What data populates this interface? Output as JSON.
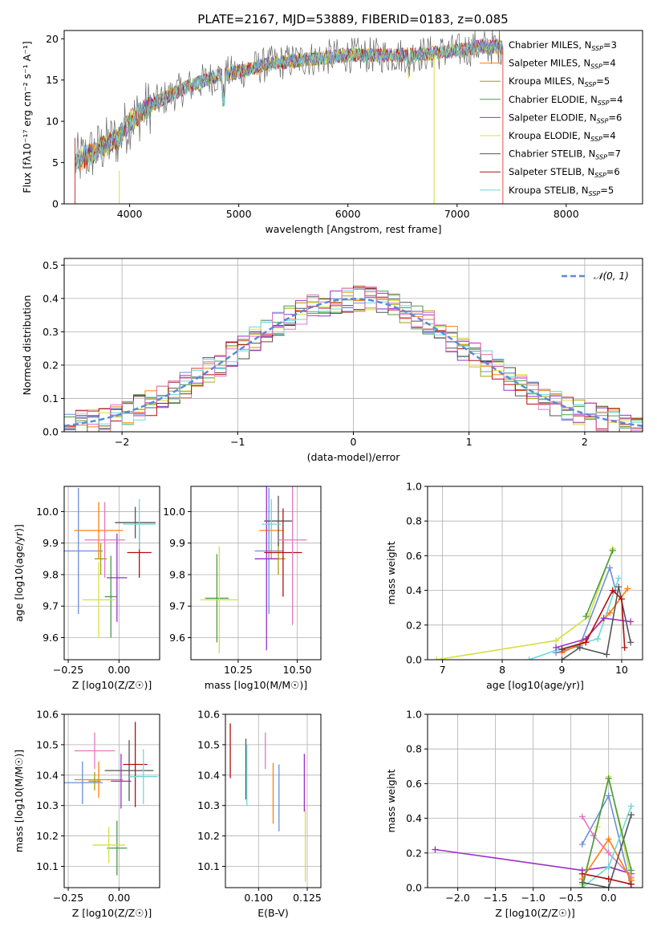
{
  "figure_title": "PLATE=2167, MJD=53889, FIBERID=0183, z=0.085",
  "colors": {
    "Chabrier MILES": "#6a8fd8",
    "Salpeter MILES": "#ff7f0e",
    "Kroupa MILES": "#a0a000",
    "Chabrier ELODIE": "#4a9a4a",
    "Salpeter ELODIE": "#9b30c8",
    "Kroupa ELODIE": "#d4e040",
    "Chabrier STELIB": "#555555",
    "Salpeter STELIB": "#b01010",
    "Kroupa STELIB": "#6ed8d8",
    "extra_pink": "#e377c2",
    "gaussian": "#5a8ad8"
  },
  "chart_data": [
    {
      "id": "spectrum",
      "type": "line",
      "title": "PLATE=2167, MJD=53889, FIBERID=0183, z=0.085",
      "xlabel": "wavelength [Angstrom, rest frame]",
      "ylabel": "Flux [fλ10⁻¹⁷ erg cm⁻² s⁻¹ A⁻¹]",
      "xlim": [
        3400,
        8700
      ],
      "ylim": [
        0,
        21
      ],
      "xticks": [
        4000,
        5000,
        6000,
        7000,
        8000
      ],
      "yticks": [
        0,
        5,
        10,
        15,
        20
      ],
      "legend_position": "top-right",
      "legend": [
        "Chabrier MILES, N_SSP=3",
        "Salpeter MILES, N_SSP=4",
        "Kroupa MILES, N_SSP=5",
        "Chabrier ELODIE, N_SSP=4",
        "Salpeter ELODIE, N_SSP=6",
        "Kroupa ELODIE, N_SSP=4",
        "Chabrier STELIB, N_SSP=7",
        "Salpeter STELIB, N_SSP=6",
        "Kroupa STELIB, N_SSP=5"
      ],
      "continuum": {
        "x": [
          3500,
          3700,
          3900,
          4000,
          4200,
          4500,
          4800,
          5000,
          5300,
          5600,
          6000,
          6500,
          7000,
          7200,
          7400
        ],
        "y": [
          5,
          6.5,
          8,
          10,
          12,
          14,
          15.5,
          16,
          17,
          17.5,
          18,
          18,
          18.5,
          19,
          19
        ]
      }
    },
    {
      "id": "residuals",
      "type": "bar",
      "xlabel": "(data-model)/error",
      "ylabel": "Normed distribution",
      "xlim": [
        -2.5,
        2.5
      ],
      "ylim": [
        0,
        0.52
      ],
      "xticks": [
        -2,
        -1,
        0,
        1,
        2
      ],
      "yticks": [
        0.0,
        0.1,
        0.2,
        0.3,
        0.4,
        0.5
      ],
      "legend_position": "top-right",
      "legend": [
        "𝒩(0, 1)"
      ],
      "bin_width": 0.1
    },
    {
      "id": "age_vs_Z",
      "type": "scatter",
      "xlabel": "Z [log10(Z/Z☉)]",
      "ylabel": "age  [log10(age/yr)]",
      "xlim": [
        -0.27,
        0.2
      ],
      "ylim": [
        9.53,
        10.08
      ],
      "xticks": [
        -0.25,
        0.0
      ],
      "yticks": [
        9.6,
        9.7,
        9.8,
        9.9,
        10.0
      ],
      "points": [
        {
          "c": "Chabrier MILES",
          "x": -0.2,
          "y": 9.875,
          "xerr": 0.12,
          "yerr": 0.2
        },
        {
          "c": "Salpeter MILES",
          "x": -0.1,
          "y": 9.94,
          "xerr": 0.12,
          "yerr": 0.09
        },
        {
          "c": "Kroupa MILES",
          "x": -0.09,
          "y": 9.85,
          "xerr": 0.03,
          "yerr": 0.05
        },
        {
          "c": "Chabrier ELODIE",
          "x": -0.04,
          "y": 9.73,
          "xerr": 0.03,
          "yerr": 0.13
        },
        {
          "c": "Salpeter ELODIE",
          "x": -0.01,
          "y": 9.79,
          "xerr": 0.05,
          "yerr": 0.14
        },
        {
          "c": "Kroupa ELODIE",
          "x": -0.1,
          "y": 9.72,
          "xerr": 0.08,
          "yerr": 0.12
        },
        {
          "c": "Chabrier STELIB",
          "x": 0.08,
          "y": 9.965,
          "xerr": 0.1,
          "yerr": 0.05
        },
        {
          "c": "Salpeter STELIB",
          "x": 0.1,
          "y": 9.87,
          "xerr": 0.06,
          "yerr": 0.08
        },
        {
          "c": "Kroupa STELIB",
          "x": 0.1,
          "y": 9.96,
          "xerr": 0.08,
          "yerr": 0.08
        },
        {
          "c": "extra_pink",
          "x": -0.07,
          "y": 9.91,
          "xerr": 0.1,
          "yerr": 0.12
        }
      ]
    },
    {
      "id": "age_vs_mass",
      "type": "scatter",
      "xlabel": "mass [log10(M/M☉)]",
      "ylabel": "",
      "xlim": [
        10.05,
        10.6
      ],
      "ylim": [
        9.53,
        10.08
      ],
      "xticks": [
        10.25,
        10.5
      ],
      "yticks": [
        9.6,
        9.7,
        9.8,
        9.9,
        10.0
      ],
      "points": [
        {
          "c": "Chabrier MILES",
          "x": 10.38,
          "y": 9.875,
          "xerr": 0.06,
          "yerr": 0.2
        },
        {
          "c": "Salpeter MILES",
          "x": 10.39,
          "y": 9.94,
          "xerr": 0.05,
          "yerr": 0.09
        },
        {
          "c": "Kroupa MILES",
          "x": 10.42,
          "y": 9.85,
          "xerr": 0.03,
          "yerr": 0.05
        },
        {
          "c": "Chabrier ELODIE",
          "x": 10.16,
          "y": 9.725,
          "xerr": 0.05,
          "yerr": 0.14
        },
        {
          "c": "Salpeter ELODIE",
          "x": 10.37,
          "y": 9.85,
          "xerr": 0.05,
          "yerr": 0.29
        },
        {
          "c": "Kroupa ELODIE",
          "x": 10.17,
          "y": 9.72,
          "xerr": 0.08,
          "yerr": 0.17
        },
        {
          "c": "Chabrier STELIB",
          "x": 10.42,
          "y": 9.97,
          "xerr": 0.06,
          "yerr": 0.08
        },
        {
          "c": "Salpeter STELIB",
          "x": 10.44,
          "y": 9.87,
          "xerr": 0.08,
          "yerr": 0.14
        },
        {
          "c": "Kroupa STELIB",
          "x": 10.39,
          "y": 9.96,
          "xerr": 0.04,
          "yerr": 0.08
        },
        {
          "c": "extra_pink",
          "x": 10.48,
          "y": 9.91,
          "xerr": 0.06,
          "yerr": 0.27
        }
      ]
    },
    {
      "id": "mass_weight_vs_age",
      "type": "line",
      "xlabel": "age  [log10(age/yr)]",
      "ylabel": "mass weight",
      "xlim": [
        6.75,
        10.35
      ],
      "ylim": [
        0,
        1
      ],
      "xticks": [
        7,
        8,
        9,
        10
      ],
      "yticks": [
        0.0,
        0.2,
        0.4,
        0.6,
        0.8,
        1.0
      ],
      "series": [
        {
          "c": "Kroupa ELODIE",
          "x": [
            6.9,
            8.9,
            9.45,
            9.85
          ],
          "y": [
            0.0,
            0.11,
            0.25,
            0.64
          ]
        },
        {
          "c": "Chabrier MILES",
          "x": [
            8.9,
            9.3,
            9.8,
            9.9
          ],
          "y": [
            0.04,
            0.08,
            0.53,
            0.4
          ]
        },
        {
          "c": "Kroupa STELIB",
          "x": [
            8.45,
            8.95,
            9.6,
            9.95
          ],
          "y": [
            0.0,
            0.06,
            0.12,
            0.47
          ]
        },
        {
          "c": "Salpeter MILES",
          "x": [
            9.0,
            9.3,
            9.8,
            10.1
          ],
          "y": [
            0.04,
            0.09,
            0.27,
            0.41
          ]
        },
        {
          "c": "Salpeter ELODIE",
          "x": [
            8.9,
            9.4,
            9.7,
            10.15
          ],
          "y": [
            0.07,
            0.12,
            0.24,
            0.22
          ]
        },
        {
          "c": "Chabrier STELIB",
          "x": [
            9.0,
            9.3,
            9.75,
            9.95,
            10.15
          ],
          "y": [
            0.0,
            0.07,
            0.03,
            0.42,
            0.1
          ]
        },
        {
          "c": "Salpeter STELIB",
          "x": [
            9.0,
            9.4,
            9.85,
            10.0,
            10.05
          ],
          "y": [
            0.06,
            0.1,
            0.4,
            0.35,
            0.07
          ]
        },
        {
          "c": "Chabrier ELODIE",
          "x": [
            9.4,
            9.85
          ],
          "y": [
            0.25,
            0.63
          ]
        }
      ]
    },
    {
      "id": "mass_vs_Z",
      "type": "scatter",
      "xlabel": "Z [log10(Z/Z☉)]",
      "ylabel": "mass [log10(M/M☉)]",
      "xlim": [
        -0.27,
        0.2
      ],
      "ylim": [
        10.03,
        10.6
      ],
      "xticks": [
        -0.25,
        0.0
      ],
      "yticks": [
        10.1,
        10.2,
        10.3,
        10.4,
        10.5,
        10.6
      ],
      "points": [
        {
          "c": "Chabrier MILES",
          "x": -0.18,
          "y": 10.375,
          "xerr": 0.1,
          "yerr": 0.07
        },
        {
          "c": "Salpeter MILES",
          "x": -0.1,
          "y": 10.385,
          "xerr": 0.12,
          "yerr": 0.06
        },
        {
          "c": "Kroupa MILES",
          "x": -0.12,
          "y": 10.38,
          "xerr": 0.03,
          "yerr": 0.03
        },
        {
          "c": "Chabrier ELODIE",
          "x": -0.01,
          "y": 10.16,
          "xerr": 0.05,
          "yerr": 0.09
        },
        {
          "c": "Salpeter ELODIE",
          "x": 0.01,
          "y": 10.38,
          "xerr": 0.05,
          "yerr": 0.09
        },
        {
          "c": "Kroupa ELODIE",
          "x": -0.05,
          "y": 10.17,
          "xerr": 0.08,
          "yerr": 0.06
        },
        {
          "c": "Chabrier STELIB",
          "x": 0.05,
          "y": 10.415,
          "xerr": 0.12,
          "yerr": 0.1
        },
        {
          "c": "Salpeter STELIB",
          "x": 0.08,
          "y": 10.435,
          "xerr": 0.06,
          "yerr": 0.14
        },
        {
          "c": "Kroupa STELIB",
          "x": 0.12,
          "y": 10.395,
          "xerr": 0.07,
          "yerr": 0.09
        },
        {
          "c": "extra_pink",
          "x": -0.12,
          "y": 10.48,
          "xerr": 0.1,
          "yerr": 0.06
        }
      ]
    },
    {
      "id": "mass_vs_EBV",
      "type": "scatter",
      "xlabel": "E(B-V)",
      "ylabel": "",
      "xlim": [
        0.083,
        0.132
      ],
      "ylim": [
        10.03,
        10.6
      ],
      "xticks": [
        0.1,
        0.125
      ],
      "yticks": [
        10.1,
        10.2,
        10.3,
        10.4,
        10.5,
        10.6
      ],
      "points": [
        {
          "c": "Salpeter STELIB",
          "x": 0.0855,
          "y": 10.48,
          "xerr": 0,
          "yerr": 0.09
        },
        {
          "c": "Chabrier STELIB",
          "x": 0.0935,
          "y": 10.42,
          "xerr": 0,
          "yerr": 0.1
        },
        {
          "c": "Kroupa STELIB",
          "x": 0.094,
          "y": 10.4,
          "xerr": 0,
          "yerr": 0.1
        },
        {
          "c": "extra_pink",
          "x": 0.1035,
          "y": 10.48,
          "xerr": 0,
          "yerr": 0.06
        },
        {
          "c": "Salpeter MILES",
          "x": 0.1075,
          "y": 10.34,
          "xerr": 0,
          "yerr": 0.1
        },
        {
          "c": "Chabrier MILES",
          "x": 0.1105,
          "y": 10.325,
          "xerr": 0,
          "yerr": 0.11
        },
        {
          "c": "Salpeter ELODIE",
          "x": 0.1235,
          "y": 10.375,
          "xerr": 0,
          "yerr": 0.095
        },
        {
          "c": "Kroupa ELODIE",
          "x": 0.124,
          "y": 10.17,
          "xerr": 0,
          "yerr": 0.12
        }
      ]
    },
    {
      "id": "mass_weight_vs_Z",
      "type": "line",
      "xlabel": "Z [log10(Z/Z☉)]",
      "ylabel": "mass weight",
      "xlim": [
        -2.4,
        0.45
      ],
      "ylim": [
        0,
        1
      ],
      "xticks": [
        -2.0,
        -1.5,
        -1.0,
        -0.5,
        0.0
      ],
      "yticks": [
        0.0,
        0.2,
        0.4,
        0.6,
        0.8,
        1.0
      ],
      "series": [
        {
          "c": "Salpeter ELODIE",
          "x": [
            -2.3,
            -0.35,
            0.0,
            0.3
          ],
          "y": [
            0.22,
            0.1,
            0.12,
            0.08
          ]
        },
        {
          "c": "Kroupa ELODIE",
          "x": [
            -0.35,
            -0.15,
            0.0,
            0.3
          ],
          "y": [
            0.02,
            0.35,
            0.64,
            0.05
          ]
        },
        {
          "c": "Chabrier MILES",
          "x": [
            -0.35,
            0.0,
            0.3
          ],
          "y": [
            0.25,
            0.53,
            0.0
          ]
        },
        {
          "c": "extra_pink",
          "x": [
            -0.35,
            -0.2,
            0.0,
            0.3
          ],
          "y": [
            0.41,
            0.3,
            0.2,
            0.06
          ]
        },
        {
          "c": "Salpeter MILES",
          "x": [
            -0.35,
            0.0,
            0.3
          ],
          "y": [
            0.05,
            0.28,
            0.04
          ]
        },
        {
          "c": "Kroupa STELIB",
          "x": [
            -0.35,
            0.0,
            0.3
          ],
          "y": [
            0.0,
            0.12,
            0.47
          ]
        },
        {
          "c": "Chabrier STELIB",
          "x": [
            -0.35,
            0.0,
            0.3
          ],
          "y": [
            0.03,
            0.0,
            0.42
          ]
        },
        {
          "c": "Salpeter STELIB",
          "x": [
            -0.35,
            0.0,
            0.3
          ],
          "y": [
            0.08,
            0.05,
            0.02
          ]
        },
        {
          "c": "Chabrier ELODIE",
          "x": [
            -0.35,
            0.0,
            0.3
          ],
          "y": [
            0.0,
            0.63,
            0.1
          ]
        }
      ]
    }
  ]
}
